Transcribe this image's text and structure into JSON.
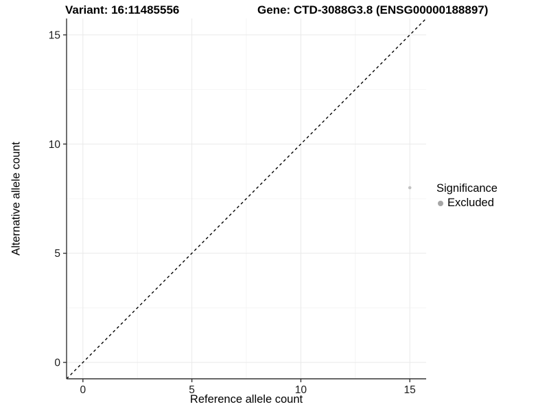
{
  "titles": {
    "variant": "Variant: 16:11485556",
    "gene": "Gene: CTD-3088G3.8 (ENSG00000188897)"
  },
  "chart_data": {
    "type": "scatter",
    "xlabel": "Reference allele count",
    "ylabel": "Alternative allele count",
    "xlim": [
      -0.75,
      15.75
    ],
    "ylim": [
      -0.75,
      15.75
    ],
    "xticks": [
      0,
      5,
      10,
      15
    ],
    "yticks": [
      0,
      5,
      10,
      15
    ],
    "x_minor_ticks": [
      2.5,
      7.5,
      12.5
    ],
    "y_minor_ticks": [
      2.5,
      7.5,
      12.5
    ],
    "grid": "major and minor, very light gray on white",
    "reference_line": {
      "kind": "identity y=x",
      "style": "dashed",
      "color": "#000000"
    },
    "series": [
      {
        "name": "Excluded",
        "color": "#c2c2c2",
        "points": [
          {
            "x": 15,
            "y": 8
          }
        ]
      }
    ],
    "legend": {
      "title": "Significance",
      "position": "right",
      "items": [
        {
          "label": "Excluded",
          "color": "#a6a6a6"
        }
      ]
    },
    "colors": {
      "grid_major": "#e9e9e9",
      "grid_minor": "#f4f4f4",
      "axis_line": "#333333",
      "tick_mark": "#333333",
      "tick_label": "#1a1a1a"
    }
  }
}
